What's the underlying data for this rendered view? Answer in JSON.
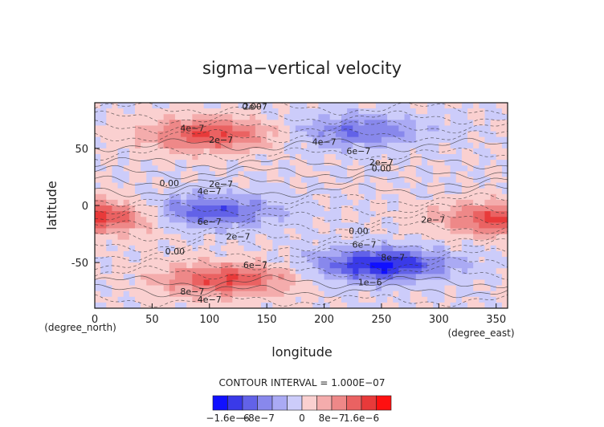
{
  "chart_data": {
    "type": "heatmap",
    "title": "sigma−vertical velocity",
    "xlabel": "longitude",
    "ylabel": "latitude",
    "x_unit": "(degree_east)",
    "y_unit": "(degree_north)",
    "xlim": [
      0,
      360
    ],
    "ylim": [
      -90,
      90
    ],
    "x_ticks": [
      0,
      50,
      100,
      150,
      200,
      250,
      300,
      350
    ],
    "y_ticks": [
      -50,
      0,
      50
    ],
    "contour_interval_text": "CONTOUR INTERVAL = 1.000E−07",
    "contour_labels": [
      {
        "text": "0.00",
        "lon": 65,
        "lat": 17
      },
      {
        "text": "0.00",
        "lon": 70,
        "lat": -43
      },
      {
        "text": "0.00",
        "lon": 137,
        "lat": 84
      },
      {
        "text": "0.00",
        "lon": 230,
        "lat": -25
      },
      {
        "text": "0.00",
        "lon": 250,
        "lat": 30
      },
      {
        "text": "2e−7",
        "lon": 140,
        "lat": 84
      },
      {
        "text": "2e−7",
        "lon": 110,
        "lat": 55
      },
      {
        "text": "4e−7",
        "lon": 85,
        "lat": 65
      },
      {
        "text": "4e−7",
        "lon": 200,
        "lat": 53
      },
      {
        "text": "6e−7",
        "lon": 230,
        "lat": 45
      },
      {
        "text": "2e−7",
        "lon": 250,
        "lat": 35
      },
      {
        "text": "2e−7",
        "lon": 110,
        "lat": 16
      },
      {
        "text": "4e−7",
        "lon": 100,
        "lat": 10
      },
      {
        "text": "6e−7",
        "lon": 100,
        "lat": -17
      },
      {
        "text": "2e−7",
        "lon": 125,
        "lat": -30
      },
      {
        "text": "2e−7",
        "lon": 295,
        "lat": -15
      },
      {
        "text": "6e−7",
        "lon": 140,
        "lat": -55
      },
      {
        "text": "8e−7",
        "lon": 85,
        "lat": -78
      },
      {
        "text": "4e−7",
        "lon": 100,
        "lat": -85
      },
      {
        "text": "6e−7",
        "lon": 235,
        "lat": -37
      },
      {
        "text": "8e−7",
        "lon": 260,
        "lat": -48
      },
      {
        "text": "1e−6",
        "lon": 240,
        "lat": -70
      }
    ],
    "colorbar": {
      "colors": [
        "#1010ff",
        "#3a3ae8",
        "#6262e8",
        "#8888ec",
        "#aaaaf4",
        "#ccccfa",
        "#fad0d0",
        "#f4acac",
        "#ee8888",
        "#ea6262",
        "#e83a3a",
        "#ff1010"
      ],
      "labels": [
        {
          "text": "−1.6e−6",
          "index": 1
        },
        {
          "text": "−8e−7",
          "index": 3
        },
        {
          "text": "0",
          "index": 6
        },
        {
          "text": "8e−7",
          "index": 8
        },
        {
          "text": "1.6e−6",
          "index": 10
        }
      ]
    },
    "field_features": [
      {
        "name": "northern-positive-band",
        "lon": 100,
        "lat": 62,
        "amp": 1.4
      },
      {
        "name": "equatorial-negative",
        "lon": 100,
        "lat": -5,
        "amp": -1.3
      },
      {
        "name": "southern-positive-band",
        "lon": 115,
        "lat": -65,
        "amp": 1.4
      },
      {
        "name": "southern-negative-core",
        "lon": 250,
        "lat": -52,
        "amp": -1.8
      },
      {
        "name": "northern-negative-band",
        "lon": 230,
        "lat": 65,
        "amp": -1.0
      },
      {
        "name": "west-edge-positive",
        "lon": 0,
        "lat": -10,
        "amp": 1.5
      },
      {
        "name": "east-edge-positive",
        "lon": 360,
        "lat": -12,
        "amp": 1.5
      }
    ]
  }
}
